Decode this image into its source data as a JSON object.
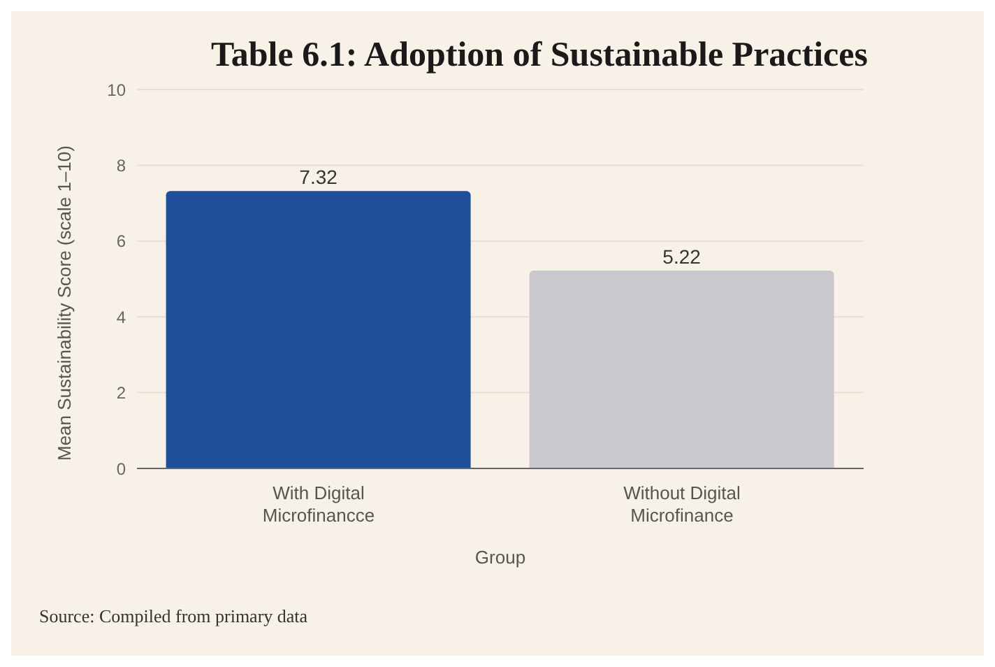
{
  "chart_data": {
    "type": "bar",
    "title": "Table 6.1: Adoption of Sustainable Practices",
    "xlabel": "Group",
    "ylabel": "Mean Sustainability Score (scale 1–10)",
    "categories": [
      "With Digital Microfinancce",
      "Without Digital Microfinance"
    ],
    "values": [
      7.32,
      5.22
    ],
    "colors": [
      "#1f4e9a",
      "#c9c9cd"
    ],
    "data_labels": true,
    "ylim": [
      0,
      10
    ],
    "yticks": [
      0,
      2,
      4,
      6,
      8,
      10
    ],
    "grid": "y",
    "annotations": [
      "Source: Compiled from primary data"
    ]
  }
}
